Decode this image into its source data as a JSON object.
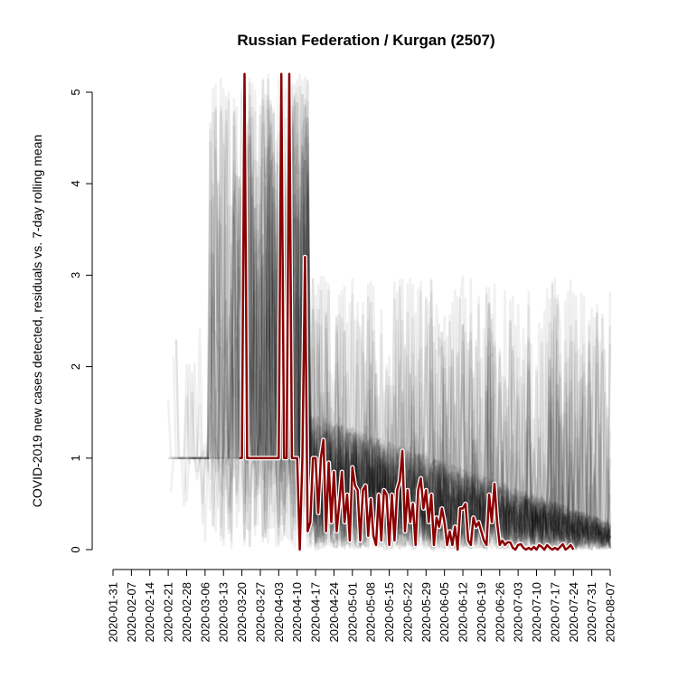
{
  "chart_data": {
    "type": "line",
    "title": "Russian Federation / Kurgan (2507)",
    "xlabel": "",
    "ylabel": "COVID-2019 new cases detected, residuals vs. 7-day rolling mean",
    "ylim": [
      0,
      5
    ],
    "y_ticks": [
      "0",
      "1",
      "2",
      "3",
      "4",
      "5"
    ],
    "x_range": [
      "2020-01-31",
      "2020-08-07"
    ],
    "x_ticks": [
      "2020-01-31",
      "2020-02-07",
      "2020-02-14",
      "2020-02-21",
      "2020-02-28",
      "2020-03-06",
      "2020-03-13",
      "2020-03-20",
      "2020-03-27",
      "2020-04-03",
      "2020-04-10",
      "2020-04-17",
      "2020-04-24",
      "2020-05-01",
      "2020-05-08",
      "2020-05-15",
      "2020-05-22",
      "2020-05-29",
      "2020-06-05",
      "2020-06-12",
      "2020-06-19",
      "2020-06-26",
      "2020-07-03",
      "2020-07-10",
      "2020-07-17",
      "2020-07-24",
      "2020-07-31",
      "2020-08-07"
    ],
    "background_series": {
      "description_color": "#000000",
      "count": 60,
      "opacity": 0.06
    },
    "series": [
      {
        "color": "#8b0000",
        "outline_color": "#ffffff",
        "points": [
          [
            "2020-03-19",
            1.0
          ],
          [
            "2020-03-20",
            1.0
          ],
          [
            "2020-03-21",
            5.2
          ],
          [
            "2020-03-22",
            1.0
          ],
          [
            "2020-03-23",
            1.0
          ],
          [
            "2020-03-24",
            1.0
          ],
          [
            "2020-03-25",
            1.0
          ],
          [
            "2020-03-26",
            1.0
          ],
          [
            "2020-03-27",
            1.0
          ],
          [
            "2020-03-28",
            1.0
          ],
          [
            "2020-03-29",
            1.0
          ],
          [
            "2020-03-30",
            1.0
          ],
          [
            "2020-03-31",
            1.0
          ],
          [
            "2020-04-01",
            1.0
          ],
          [
            "2020-04-02",
            1.0
          ],
          [
            "2020-04-03",
            1.0
          ],
          [
            "2020-04-04",
            5.2
          ],
          [
            "2020-04-05",
            1.0
          ],
          [
            "2020-04-06",
            1.0
          ],
          [
            "2020-04-07",
            5.2
          ],
          [
            "2020-04-08",
            1.0
          ],
          [
            "2020-04-09",
            1.0
          ],
          [
            "2020-04-10",
            1.0
          ],
          [
            "2020-04-11",
            0.0
          ],
          [
            "2020-04-12",
            1.0
          ],
          [
            "2020-04-13",
            3.2
          ],
          [
            "2020-04-14",
            0.2
          ],
          [
            "2020-04-15",
            0.3
          ],
          [
            "2020-04-16",
            1.0
          ],
          [
            "2020-04-17",
            1.0
          ],
          [
            "2020-04-18",
            0.4
          ],
          [
            "2020-04-19",
            1.0
          ],
          [
            "2020-04-20",
            1.2
          ],
          [
            "2020-04-21",
            0.2
          ],
          [
            "2020-04-22",
            0.95
          ],
          [
            "2020-04-23",
            0.3
          ],
          [
            "2020-04-24",
            0.85
          ],
          [
            "2020-04-25",
            0.2
          ],
          [
            "2020-04-26",
            0.5
          ],
          [
            "2020-04-27",
            0.85
          ],
          [
            "2020-04-28",
            0.3
          ],
          [
            "2020-04-29",
            0.6
          ],
          [
            "2020-04-30",
            0.1
          ],
          [
            "2020-05-01",
            0.9
          ],
          [
            "2020-05-02",
            0.7
          ],
          [
            "2020-05-03",
            0.65
          ],
          [
            "2020-05-04",
            0.1
          ],
          [
            "2020-05-05",
            0.65
          ],
          [
            "2020-05-06",
            0.7
          ],
          [
            "2020-05-07",
            0.15
          ],
          [
            "2020-05-08",
            0.55
          ],
          [
            "2020-05-09",
            0.15
          ],
          [
            "2020-05-10",
            0.05
          ],
          [
            "2020-05-11",
            0.6
          ],
          [
            "2020-05-12",
            0.1
          ],
          [
            "2020-05-13",
            0.65
          ],
          [
            "2020-05-14",
            0.6
          ],
          [
            "2020-05-15",
            0.05
          ],
          [
            "2020-05-16",
            0.6
          ],
          [
            "2020-05-17",
            0.1
          ],
          [
            "2020-05-18",
            0.65
          ],
          [
            "2020-05-19",
            0.75
          ],
          [
            "2020-05-20",
            1.08
          ],
          [
            "2020-05-21",
            0.2
          ],
          [
            "2020-05-22",
            0.65
          ],
          [
            "2020-05-23",
            0.3
          ],
          [
            "2020-05-24",
            0.5
          ],
          [
            "2020-05-25",
            0.05
          ],
          [
            "2020-05-26",
            0.65
          ],
          [
            "2020-05-27",
            0.78
          ],
          [
            "2020-05-28",
            0.45
          ],
          [
            "2020-05-29",
            0.65
          ],
          [
            "2020-05-30",
            0.3
          ],
          [
            "2020-05-31",
            0.6
          ],
          [
            "2020-06-01",
            0.05
          ],
          [
            "2020-06-02",
            0.35
          ],
          [
            "2020-06-03",
            0.25
          ],
          [
            "2020-06-04",
            0.45
          ],
          [
            "2020-06-05",
            0.3
          ],
          [
            "2020-06-06",
            0.05
          ],
          [
            "2020-06-07",
            0.2
          ],
          [
            "2020-06-08",
            0.05
          ],
          [
            "2020-06-09",
            0.25
          ],
          [
            "2020-06-10",
            0.0
          ],
          [
            "2020-06-11",
            0.45
          ],
          [
            "2020-06-12",
            0.45
          ],
          [
            "2020-06-13",
            0.5
          ],
          [
            "2020-06-14",
            0.1
          ],
          [
            "2020-06-15",
            0.05
          ],
          [
            "2020-06-16",
            0.35
          ],
          [
            "2020-06-17",
            0.25
          ],
          [
            "2020-06-18",
            0.3
          ],
          [
            "2020-06-19",
            0.2
          ],
          [
            "2020-06-20",
            0.1
          ],
          [
            "2020-06-21",
            0.05
          ],
          [
            "2020-06-22",
            0.6
          ],
          [
            "2020-06-23",
            0.3
          ],
          [
            "2020-06-24",
            0.72
          ],
          [
            "2020-06-25",
            0.3
          ],
          [
            "2020-06-26",
            0.05
          ],
          [
            "2020-06-27",
            0.1
          ],
          [
            "2020-06-28",
            0.05
          ],
          [
            "2020-06-29",
            0.08
          ],
          [
            "2020-06-30",
            0.08
          ],
          [
            "2020-07-01",
            0.02
          ],
          [
            "2020-07-02",
            0.0
          ],
          [
            "2020-07-03",
            0.05
          ],
          [
            "2020-07-04",
            0.06
          ],
          [
            "2020-07-05",
            0.02
          ],
          [
            "2020-07-06",
            0.0
          ],
          [
            "2020-07-07",
            0.02
          ],
          [
            "2020-07-08",
            0.0
          ],
          [
            "2020-07-09",
            0.03
          ],
          [
            "2020-07-10",
            0.0
          ],
          [
            "2020-07-11",
            0.05
          ],
          [
            "2020-07-12",
            0.03
          ],
          [
            "2020-07-13",
            0.0
          ],
          [
            "2020-07-14",
            0.05
          ],
          [
            "2020-07-15",
            0.02
          ],
          [
            "2020-07-16",
            0.0
          ],
          [
            "2020-07-17",
            0.02
          ],
          [
            "2020-07-18",
            0.0
          ],
          [
            "2020-07-19",
            0.03
          ],
          [
            "2020-07-20",
            0.06
          ],
          [
            "2020-07-21",
            0.0
          ],
          [
            "2020-07-22",
            0.02
          ],
          [
            "2020-07-23",
            0.05
          ],
          [
            "2020-07-24",
            0.0
          ]
        ]
      }
    ]
  }
}
